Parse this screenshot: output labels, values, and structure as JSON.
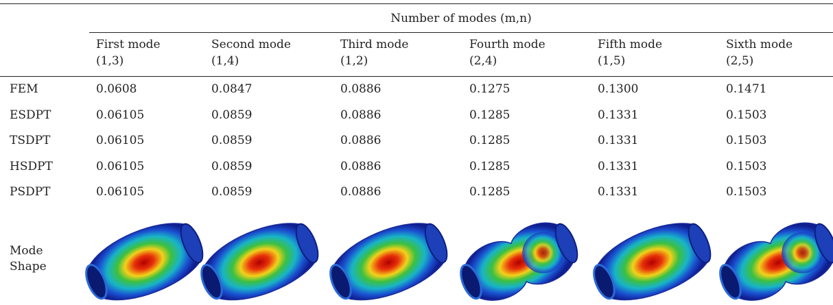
{
  "header": {
    "title": "Number of modes (m,n)"
  },
  "columns": [
    {
      "name": "First mode",
      "mn": "(1,3)"
    },
    {
      "name": "Second mode",
      "mn": "(1,4)"
    },
    {
      "name": "Third mode",
      "mn": "(1,2)"
    },
    {
      "name": "Fourth mode",
      "mn": "(2,4)"
    },
    {
      "name": "Fifth mode",
      "mn": "(1,5)"
    },
    {
      "name": "Sixth mode",
      "mn": "(2,5)"
    }
  ],
  "rows": [
    {
      "label": "FEM",
      "values": [
        "0.0608",
        "0.0847",
        "0.0886",
        "0.1275",
        "0.1300",
        "0.1471"
      ]
    },
    {
      "label": "ESDPT",
      "values": [
        "0.06105",
        "0.0859",
        "0.0886",
        "0.1285",
        "0.1331",
        "0.1503"
      ]
    },
    {
      "label": "TSDPT",
      "values": [
        "0.06105",
        "0.0859",
        "0.0886",
        "0.1285",
        "0.1331",
        "0.1503"
      ]
    },
    {
      "label": "HSDPT",
      "values": [
        "0.06105",
        "0.0859",
        "0.0886",
        "0.1285",
        "0.1331",
        "0.1503"
      ]
    },
    {
      "label": "PSDPT",
      "values": [
        "0.06105",
        "0.0859",
        "0.0886",
        "0.1285",
        "0.1331",
        "0.1503"
      ]
    }
  ],
  "mode_shape_label": "Mode Shape"
}
